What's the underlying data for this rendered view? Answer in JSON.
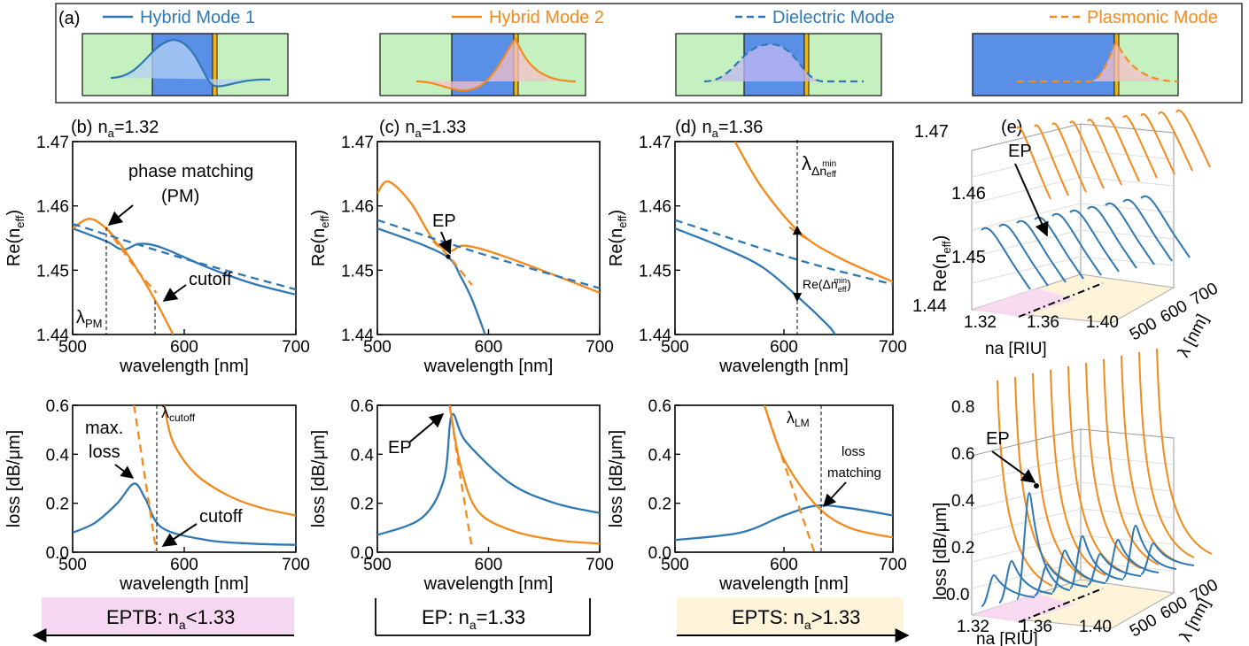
{
  "colors": {
    "blue": "#2f78b4",
    "orange": "#f28a1c",
    "wg_green": "#c5f0c0",
    "wg_blue": "#5a8fe8",
    "metal": "#f2b705",
    "pink": "#f7d8f2",
    "cream": "#fdf4da"
  },
  "legend": {
    "panel_label": "(a)",
    "items": [
      {
        "label": "Hybrid Mode 1",
        "style": "solid",
        "color": "blue"
      },
      {
        "label": "Hybrid Mode 2",
        "style": "solid",
        "color": "orange"
      },
      {
        "label": "Dielectric Mode",
        "style": "dashed",
        "color": "blue"
      },
      {
        "label": "Plasmonic Mode",
        "style": "dashed",
        "color": "orange"
      }
    ]
  },
  "panels": {
    "b": {
      "label": "(b)",
      "na_prefix": "n",
      "na_sub": "a",
      "na_value": "=1.32"
    },
    "c": {
      "label": "(c)",
      "na_prefix": "n",
      "na_sub": "a",
      "na_value": "=1.33"
    },
    "d": {
      "label": "(d)",
      "na_prefix": "n",
      "na_sub": "a",
      "na_value": "=1.36"
    },
    "e": {
      "label": "(e)"
    }
  },
  "axes": {
    "xlabel": "wavelength [nm]",
    "ylabel_re": "Re(n",
    "ylabel_re_sub": "eff",
    "ylabel_re_close": ")",
    "ylabel_loss": "loss [dB/μm]",
    "re_ticks": [
      "1.47",
      "1.46",
      "1.45",
      "1.44"
    ],
    "loss_ticks": [
      "0.6",
      "0.4",
      "0.2",
      "0.0"
    ],
    "x_ticks": [
      "500",
      "600",
      "700"
    ],
    "surface_ylabel_loss": "loss [dB/μm]",
    "surface_loss_ticks": [
      "0.8",
      "0.6",
      "0.4",
      "0.2",
      "0.0"
    ],
    "na_axis": "na [RIU]",
    "na_ticks": [
      "1.32",
      "1.36",
      "1.40"
    ],
    "lambda_axis": "λ [nm]",
    "lambda_ticks": [
      "500",
      "600",
      "700"
    ]
  },
  "annotations": {
    "phase_matching": "phase matching",
    "pm": "(PM)",
    "cutoff": "cutoff",
    "lambda_pm": "λ",
    "lambda_pm_sub": "PM",
    "ep": "EP",
    "lambda_dn": "λ",
    "lambda_dn_sub": "Δn",
    "lambda_dn_supsub": "eff",
    "lambda_dn_sup": "min",
    "re_dn": "Re(Δn",
    "re_dn_sub": "eff",
    "re_dn_sup": "min",
    "re_dn_close": ")",
    "max_loss_1": "max.",
    "max_loss_2": "loss",
    "lambda_cutoff": "λ",
    "lambda_cutoff_sub": "cutoff",
    "lambda_lm": "λ",
    "lambda_lm_sub": "LM",
    "loss_matching_1": "loss",
    "loss_matching_2": "matching"
  },
  "regimes": {
    "eptb": {
      "prefix": "EPTB: n",
      "sub": "a",
      "suffix": "<1.33"
    },
    "ep": {
      "prefix": "EP: n",
      "sub": "a",
      "suffix": "=1.33"
    },
    "epts": {
      "prefix": "EPTS: n",
      "sub": "a",
      "suffix": ">1.33"
    }
  },
  "chart_data": [
    {
      "type": "line",
      "panel": "b-real",
      "xlim": [
        500,
        700
      ],
      "ylim": [
        1.44,
        1.47
      ],
      "series": [
        {
          "name": "Hybrid Mode 1",
          "x": [
            500,
            530,
            545,
            560,
            580,
            620,
            660,
            700
          ],
          "y": [
            1.4565,
            1.4545,
            1.4532,
            1.4541,
            1.4535,
            1.4505,
            1.448,
            1.4462
          ]
        },
        {
          "name": "Hybrid Mode 2",
          "x": [
            500,
            515,
            530,
            545,
            560,
            575,
            590
          ],
          "y": [
            1.4565,
            1.458,
            1.4565,
            1.4535,
            1.4495,
            1.445,
            1.44
          ]
        },
        {
          "name": "Dielectric Mode",
          "x": [
            500,
            600,
            700
          ],
          "y": [
            1.4572,
            1.4518,
            1.447
          ]
        },
        {
          "name": "Plasmonic Mode",
          "x": [
            530,
            545,
            560,
            575
          ],
          "y": [
            1.4567,
            1.453,
            1.4495,
            1.4465
          ]
        }
      ]
    },
    {
      "type": "line",
      "panel": "c-real",
      "xlim": [
        500,
        700
      ],
      "ylim": [
        1.44,
        1.47
      ],
      "series": [
        {
          "name": "Hybrid Mode 1",
          "x": [
            500,
            540,
            565,
            575,
            585,
            597
          ],
          "y": [
            1.4565,
            1.454,
            1.4518,
            1.449,
            1.4455,
            1.44
          ]
        },
        {
          "name": "Hybrid Mode 2",
          "x": [
            500,
            510,
            530,
            550,
            565,
            580,
            620,
            700
          ],
          "y": [
            1.462,
            1.4638,
            1.4605,
            1.4548,
            1.453,
            1.4538,
            1.4518,
            1.4465
          ]
        },
        {
          "name": "Dielectric Mode",
          "x": [
            500,
            600,
            700
          ],
          "y": [
            1.4578,
            1.4522,
            1.4472
          ]
        },
        {
          "name": "Plasmonic Mode",
          "x": [
            550,
            565,
            585
          ],
          "y": [
            1.4545,
            1.452,
            1.4477
          ]
        }
      ]
    },
    {
      "type": "line",
      "panel": "d-real",
      "xlim": [
        500,
        700
      ],
      "ylim": [
        1.44,
        1.47
      ],
      "series": [
        {
          "name": "Hybrid Mode 1",
          "x": [
            500,
            540,
            580,
            615,
            640,
            647
          ],
          "y": [
            1.4565,
            1.4538,
            1.4505,
            1.4455,
            1.4415,
            1.44
          ]
        },
        {
          "name": "Hybrid Mode 2",
          "x": [
            555,
            580,
            615,
            650,
            700
          ],
          "y": [
            1.47,
            1.4628,
            1.4558,
            1.452,
            1.4482
          ]
        },
        {
          "name": "Dielectric Mode",
          "x": [
            500,
            615,
            700
          ],
          "y": [
            1.4578,
            1.4515,
            1.4478
          ]
        },
        {
          "name": "Plasmonic Mode",
          "x": [
            605,
            615,
            625
          ],
          "y": [
            1.4567,
            1.4555,
            1.4545
          ]
        }
      ]
    },
    {
      "type": "line",
      "panel": "b-loss",
      "xlim": [
        500,
        700
      ],
      "ylim": [
        0,
        0.6
      ],
      "series": [
        {
          "name": "Hybrid Mode 1",
          "x": [
            500,
            520,
            540,
            555,
            565,
            580,
            620,
            660,
            700
          ],
          "y": [
            0.08,
            0.12,
            0.2,
            0.28,
            0.22,
            0.1,
            0.05,
            0.035,
            0.03
          ]
        },
        {
          "name": "Hybrid Mode 2",
          "x": [
            582,
            590,
            610,
            640,
            670,
            700
          ],
          "y": [
            0.6,
            0.45,
            0.32,
            0.23,
            0.18,
            0.15
          ]
        },
        {
          "name": "Plasmonic Mode",
          "x": [
            555,
            565,
            575
          ],
          "y": [
            0.6,
            0.3,
            0.0
          ]
        }
      ]
    },
    {
      "type": "line",
      "panel": "c-loss",
      "xlim": [
        500,
        700
      ],
      "ylim": [
        0,
        0.6
      ],
      "series": [
        {
          "name": "Hybrid Mode 1",
          "x": [
            500,
            540,
            560,
            567,
            580,
            620,
            660,
            700
          ],
          "y": [
            0.07,
            0.14,
            0.3,
            0.56,
            0.45,
            0.28,
            0.2,
            0.16
          ]
        },
        {
          "name": "Hybrid Mode 2",
          "x": [
            565,
            575,
            590,
            620,
            660,
            700
          ],
          "y": [
            0.6,
            0.35,
            0.17,
            0.09,
            0.05,
            0.035
          ]
        },
        {
          "name": "Plasmonic Mode",
          "x": [
            565,
            575,
            585
          ],
          "y": [
            0.6,
            0.3,
            0.02
          ]
        }
      ]
    },
    {
      "type": "line",
      "panel": "d-loss",
      "xlim": [
        500,
        700
      ],
      "ylim": [
        0,
        0.6
      ],
      "series": [
        {
          "name": "Hybrid Mode 1",
          "x": [
            500,
            560,
            600,
            630,
            660,
            700
          ],
          "y": [
            0.05,
            0.08,
            0.15,
            0.19,
            0.18,
            0.15
          ]
        },
        {
          "name": "Hybrid Mode 2",
          "x": [
            582,
            600,
            630,
            660,
            700
          ],
          "y": [
            0.6,
            0.38,
            0.19,
            0.1,
            0.06
          ]
        },
        {
          "name": "Plasmonic Mode",
          "x": [
            582,
            605,
            628
          ],
          "y": [
            0.6,
            0.3,
            0.0
          ]
        }
      ]
    }
  ]
}
